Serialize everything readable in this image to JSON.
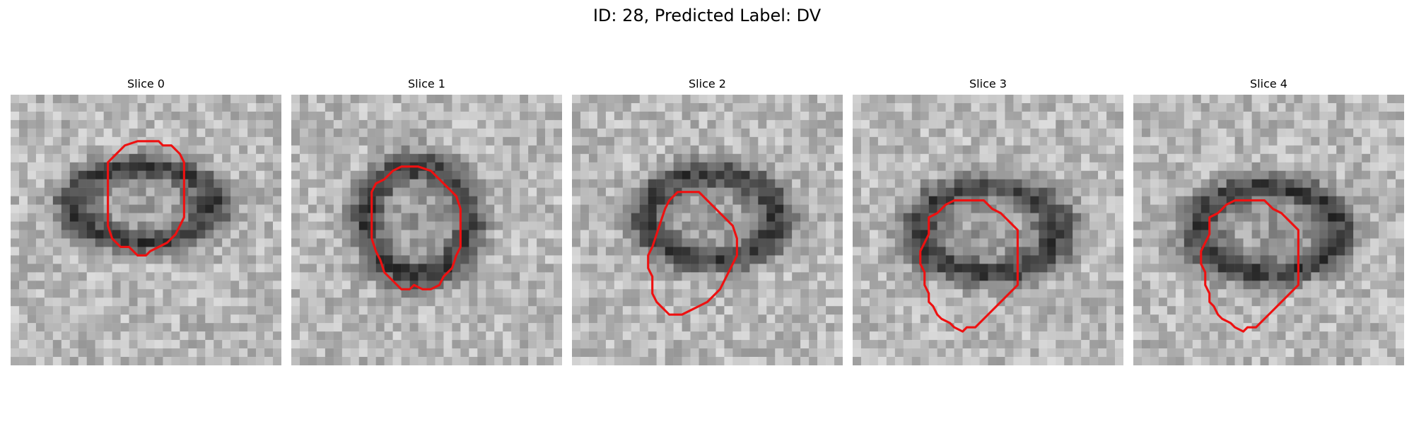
{
  "figure": {
    "title": "ID: 28, Predicted Label: DV"
  },
  "panels": [
    {
      "title": "Slice 0",
      "contour": [
        [
          14.5,
          5
        ],
        [
          17,
          5
        ],
        [
          17.5,
          5.5
        ],
        [
          18.5,
          5.5
        ],
        [
          19.5,
          6.5
        ],
        [
          20,
          7.5
        ],
        [
          20,
          14
        ],
        [
          19.5,
          15
        ],
        [
          19,
          16
        ],
        [
          18.5,
          16.5
        ],
        [
          18,
          17
        ],
        [
          17,
          17.5
        ],
        [
          16,
          18
        ],
        [
          15.5,
          18.5
        ],
        [
          14.5,
          18.5
        ],
        [
          13.5,
          17.5
        ],
        [
          12.5,
          17.5
        ],
        [
          11.5,
          16.5
        ],
        [
          11,
          15
        ],
        [
          11,
          7.5
        ],
        [
          12,
          6.5
        ],
        [
          13,
          5.5
        ]
      ],
      "dark_ring": {
        "cx": 15.2,
        "cy": 12.5,
        "rx": 9.5,
        "ry": 5.2
      }
    },
    {
      "title": "Slice 1",
      "contour": [
        [
          12.5,
          8
        ],
        [
          14.5,
          8
        ],
        [
          16,
          8.5
        ],
        [
          17,
          9.5
        ],
        [
          18,
          10.5
        ],
        [
          19,
          11.5
        ],
        [
          19.5,
          13
        ],
        [
          19.5,
          17.5
        ],
        [
          19,
          18.5
        ],
        [
          18.5,
          20
        ],
        [
          17.5,
          21
        ],
        [
          17,
          22
        ],
        [
          16,
          22.5
        ],
        [
          15,
          22.5
        ],
        [
          14,
          22
        ],
        [
          13.5,
          22.5
        ],
        [
          12.5,
          22.5
        ],
        [
          11.5,
          21.5
        ],
        [
          10.5,
          20.5
        ],
        [
          10,
          19
        ],
        [
          9.5,
          18
        ],
        [
          9,
          16.5
        ],
        [
          9,
          11
        ],
        [
          9.5,
          10
        ],
        [
          10.5,
          9.5
        ],
        [
          11.5,
          8.5
        ]
      ],
      "dark_ring": {
        "cx": 14.5,
        "cy": 14.5,
        "rx": 7.2,
        "ry": 7.5
      }
    },
    {
      "title": "Slice 2",
      "contour": [
        [
          12,
          11
        ],
        [
          14.5,
          11
        ],
        [
          15.5,
          12
        ],
        [
          16.5,
          13
        ],
        [
          17.5,
          14
        ],
        [
          18.5,
          15
        ],
        [
          19,
          16.5
        ],
        [
          19,
          18.5
        ],
        [
          18.5,
          19.5
        ],
        [
          18,
          20.5
        ],
        [
          17.5,
          21.5
        ],
        [
          17,
          22.5
        ],
        [
          16.5,
          23
        ],
        [
          16,
          23.5
        ],
        [
          15.5,
          24
        ],
        [
          14.5,
          24.5
        ],
        [
          13.5,
          25
        ],
        [
          12.5,
          25.5
        ],
        [
          11,
          25.5
        ],
        [
          10.5,
          25
        ],
        [
          10,
          24.5
        ],
        [
          9.5,
          24
        ],
        [
          9,
          23
        ],
        [
          9,
          21
        ],
        [
          8.5,
          20
        ],
        [
          8.5,
          18.5
        ],
        [
          9,
          17.5
        ],
        [
          9.5,
          16
        ],
        [
          10,
          14.5
        ],
        [
          10.5,
          13
        ],
        [
          11,
          12
        ]
      ],
      "dark_ring": {
        "cx": 16,
        "cy": 14,
        "rx": 9,
        "ry": 6
      }
    },
    {
      "title": "Slice 3",
      "contour": [
        [
          12.5,
          12
        ],
        [
          15,
          12
        ],
        [
          16,
          13
        ],
        [
          17,
          13.5
        ],
        [
          18,
          14.5
        ],
        [
          19,
          15.5
        ],
        [
          19,
          22
        ],
        [
          18,
          23
        ],
        [
          17.5,
          23.5
        ],
        [
          16.5,
          24.5
        ],
        [
          15.5,
          25.5
        ],
        [
          14.5,
          26.5
        ],
        [
          14,
          27
        ],
        [
          13,
          27
        ],
        [
          12.5,
          27.5
        ],
        [
          11.5,
          27
        ],
        [
          11,
          26.5
        ],
        [
          10,
          26
        ],
        [
          9.5,
          25.5
        ],
        [
          9,
          24.5
        ],
        [
          8.5,
          24
        ],
        [
          8.5,
          23
        ],
        [
          8,
          22
        ],
        [
          8,
          20.5
        ],
        [
          7.5,
          19.5
        ],
        [
          7.5,
          18
        ],
        [
          8,
          17
        ],
        [
          8.5,
          16
        ],
        [
          8.5,
          14
        ],
        [
          9.5,
          13.5
        ],
        [
          10.5,
          12.5
        ],
        [
          11.5,
          12
        ]
      ],
      "dark_ring": {
        "cx": 15.5,
        "cy": 15.5,
        "rx": 9.5,
        "ry": 6
      }
    },
    {
      "title": "Slice 4",
      "contour": [
        [
          12.5,
          12
        ],
        [
          15,
          12
        ],
        [
          16,
          13
        ],
        [
          17,
          13.5
        ],
        [
          18,
          14.5
        ],
        [
          19,
          15.5
        ],
        [
          19,
          22
        ],
        [
          18,
          23
        ],
        [
          17.5,
          23.5
        ],
        [
          16.5,
          24.5
        ],
        [
          15.5,
          25.5
        ],
        [
          14.5,
          26.5
        ],
        [
          14,
          27
        ],
        [
          13,
          27
        ],
        [
          12.5,
          27.5
        ],
        [
          11.5,
          27
        ],
        [
          11,
          26.5
        ],
        [
          10,
          26
        ],
        [
          9.5,
          25.5
        ],
        [
          9,
          24.5
        ],
        [
          8.5,
          24
        ],
        [
          8.5,
          23
        ],
        [
          8,
          22
        ],
        [
          8,
          20.5
        ],
        [
          7.5,
          19.5
        ],
        [
          7.5,
          18
        ],
        [
          8,
          17
        ],
        [
          8.5,
          16
        ],
        [
          8.5,
          14
        ],
        [
          9.5,
          13.5
        ],
        [
          10.5,
          12.5
        ],
        [
          11.5,
          12
        ]
      ],
      "dark_ring": {
        "cx": 15.5,
        "cy": 15.5,
        "rx": 9.5,
        "ry": 6
      }
    }
  ],
  "colors": {
    "contour": "#ee1111",
    "background": "#ffffff"
  }
}
